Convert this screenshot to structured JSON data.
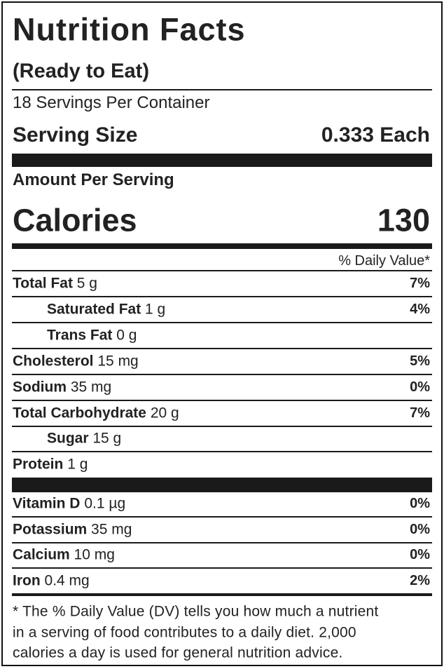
{
  "label": {
    "title": "Nutrition Facts",
    "subtitle": "(Ready to Eat)",
    "servings": "18 Servings Per Container",
    "serving_size_label": "Serving Size",
    "serving_size_value": "0.333 Each",
    "amount_per_serving": "Amount Per Serving",
    "calories_label": "Calories",
    "calories_value": "130",
    "daily_value_header": "% Daily Value*",
    "nutrients": [
      {
        "name": "Total Fat",
        "amount": "5 g",
        "dv": "7%"
      },
      {
        "name": "Saturated Fat",
        "amount": "1 g",
        "dv": "4%",
        "indent": true
      },
      {
        "name": "Trans Fat",
        "amount": "0 g",
        "indent": true
      },
      {
        "name": "Cholesterol",
        "amount": "15 mg",
        "dv": "5%"
      },
      {
        "name": "Sodium",
        "amount": "35 mg",
        "dv": "0%"
      },
      {
        "name": "Total Carbohydrate",
        "amount": "20 g",
        "dv": "7%"
      },
      {
        "name": "Sugar",
        "amount": "15 g",
        "indent": true
      },
      {
        "name": "Protein",
        "amount": "1 g"
      }
    ],
    "vitamins": [
      {
        "name": "Vitamin D",
        "amount": "0.1 µg",
        "dv": "0%"
      },
      {
        "name": "Potassium",
        "amount": "35 mg",
        "dv": "0%"
      },
      {
        "name": "Calcium",
        "amount": "10 mg",
        "dv": "0%"
      },
      {
        "name": "Iron",
        "amount": "0.4 mg",
        "dv": "2%"
      }
    ],
    "footnote": [
      "* The % Daily Value (DV) tells you how much a nutrient",
      "in a serving of food contributes to a daily diet. 2,000",
      "calories a day is used for general nutrition advice."
    ]
  }
}
